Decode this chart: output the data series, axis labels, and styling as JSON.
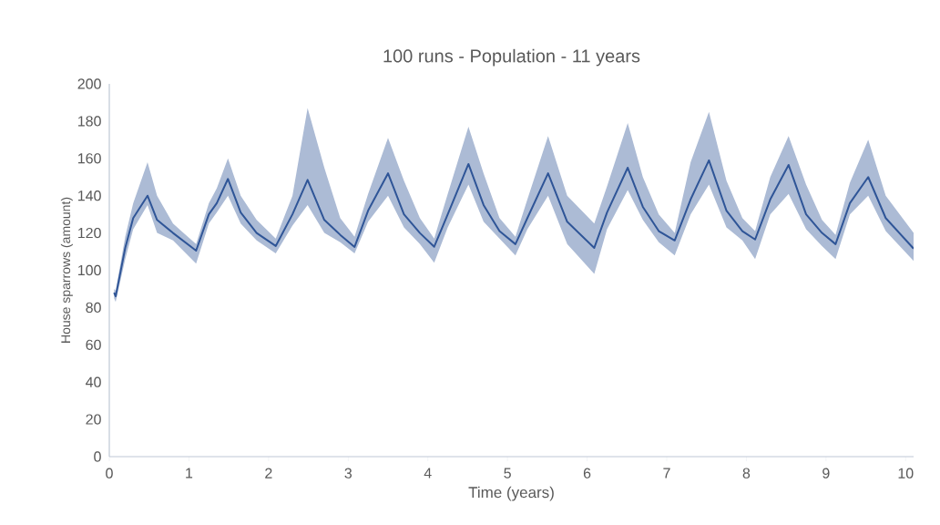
{
  "chart_data": {
    "type": "line",
    "title": "100 runs - Population - 11 years",
    "xlabel": "Time (years)",
    "ylabel": "House sparrows (amount)",
    "xlim": [
      0,
      10.1
    ],
    "ylim": [
      0,
      200
    ],
    "xticks": [
      0,
      1,
      2,
      3,
      4,
      5,
      6,
      7,
      8,
      9,
      10
    ],
    "yticks": [
      0,
      20,
      40,
      60,
      80,
      100,
      120,
      140,
      160,
      180,
      200
    ],
    "grid": false,
    "legend": false,
    "marker": "none",
    "line_style": "solid",
    "series": [
      {
        "color": "#2f5597",
        "x": [
          0.06,
          0.08,
          0.2,
          0.3,
          0.48,
          0.6,
          0.8,
          1.09,
          1.25,
          1.35,
          1.49,
          1.65,
          1.85,
          2.09,
          2.3,
          2.49,
          2.7,
          2.9,
          3.08,
          3.25,
          3.5,
          3.7,
          3.9,
          4.08,
          4.25,
          4.51,
          4.7,
          4.9,
          5.1,
          5.25,
          5.51,
          5.75,
          6.09,
          6.25,
          6.51,
          6.7,
          6.9,
          7.1,
          7.3,
          7.53,
          7.75,
          7.95,
          8.11,
          8.3,
          8.53,
          8.75,
          8.95,
          9.12,
          9.3,
          9.53,
          9.75,
          10.1
        ],
        "values": [
          88,
          86,
          112,
          128,
          140,
          127,
          120,
          110.5,
          130,
          136,
          149,
          131,
          120,
          113,
          130,
          148.5,
          127,
          119,
          112.5,
          132,
          152,
          130,
          120,
          112.6,
          130,
          157,
          135,
          121,
          114,
          128,
          152,
          126,
          112,
          131,
          155,
          134,
          121,
          116,
          138,
          159,
          132,
          121,
          116.5,
          138,
          156.5,
          130,
          120,
          114,
          136,
          150,
          128,
          111.6
        ],
        "lower": [
          85,
          83,
          106,
          122,
          135,
          120,
          116,
          103.5,
          125,
          131,
          140,
          125,
          116,
          109,
          124,
          135,
          120,
          115,
          109,
          126,
          140,
          123,
          114,
          104,
          123,
          146,
          126,
          117,
          108,
          122,
          140,
          114,
          98,
          122,
          143,
          127,
          115,
          108,
          130,
          146,
          123,
          116,
          106,
          130,
          141,
          122,
          113,
          106,
          130,
          140,
          121,
          105
        ],
        "upper": [
          90,
          89,
          118,
          136,
          158,
          140,
          125,
          114,
          136,
          144,
          160,
          140,
          127,
          117,
          140,
          187,
          155,
          128,
          118,
          141,
          171,
          148,
          128,
          117,
          141,
          177,
          152,
          128,
          118,
          138,
          172,
          140,
          125,
          145,
          179,
          150,
          130,
          120,
          158,
          185,
          148,
          128,
          121,
          150,
          172,
          146,
          127,
          119,
          147,
          170,
          140,
          120
        ]
      }
    ]
  }
}
